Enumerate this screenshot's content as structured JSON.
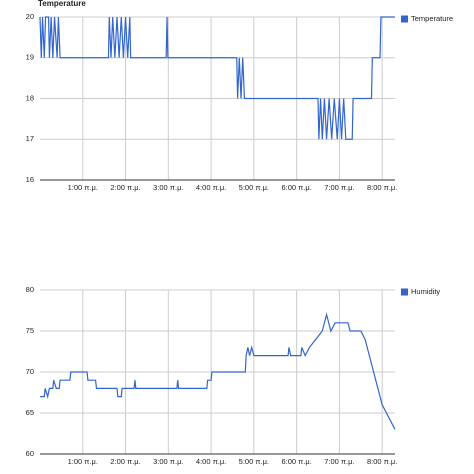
{
  "chart_data": [
    {
      "type": "line",
      "title": "Temperature",
      "x": [
        0,
        0.03,
        0.06,
        0.1,
        0.13,
        0.2,
        0.22,
        0.26,
        0.3,
        0.34,
        0.4,
        0.43,
        0.47,
        1.6,
        1.62,
        1.66,
        1.7,
        1.75,
        1.8,
        1.85,
        1.9,
        1.95,
        2.0,
        2.05,
        2.1,
        2.12,
        2.95,
        2.97,
        2.99,
        4.6,
        4.62,
        4.66,
        4.7,
        4.74,
        4.78,
        6.5,
        6.52,
        6.56,
        6.6,
        6.65,
        6.7,
        6.76,
        6.82,
        6.88,
        6.95,
        7.0,
        7.05,
        7.1,
        7.15,
        7.3,
        7.32,
        7.75,
        7.77,
        7.95,
        7.97,
        8.3
      ],
      "series": [
        {
          "name": "Temperature",
          "color": "#3366cc",
          "values": [
            20,
            19,
            20,
            19,
            20,
            20,
            19,
            20,
            19,
            20,
            19,
            20,
            19,
            19,
            20,
            19,
            20,
            19,
            20,
            19,
            20,
            19,
            20,
            19,
            20,
            19,
            19,
            20,
            19,
            19,
            18,
            19,
            18,
            19,
            18,
            18,
            17,
            18,
            17,
            18,
            17,
            18,
            17,
            18,
            17,
            18,
            17,
            18,
            17,
            17,
            18,
            18,
            19,
            19,
            20,
            20
          ]
        }
      ],
      "xlim": [
        0,
        8.3
      ],
      "xticks": [
        {
          "value": 1,
          "label": "1:00 π.μ."
        },
        {
          "value": 2,
          "label": "2:00 π.μ."
        },
        {
          "value": 3,
          "label": "3:00 π.μ."
        },
        {
          "value": 4,
          "label": "4:00 π.μ."
        },
        {
          "value": 5,
          "label": "5:00 π.μ."
        },
        {
          "value": 6,
          "label": "6:00 π.μ."
        },
        {
          "value": 7,
          "label": "7:00 π.μ."
        },
        {
          "value": 8,
          "label": "8:00 π.μ."
        }
      ],
      "ylim": [
        16,
        20
      ],
      "yticks": [
        16,
        17,
        18,
        19,
        20
      ],
      "grid": true,
      "legend": "right"
    },
    {
      "type": "line",
      "x": [
        0,
        0.1,
        0.12,
        0.18,
        0.22,
        0.3,
        0.32,
        0.38,
        0.45,
        0.47,
        0.7,
        0.72,
        1.1,
        1.12,
        1.3,
        1.32,
        1.8,
        1.82,
        1.9,
        1.92,
        2.2,
        2.22,
        2.24,
        3.2,
        3.22,
        3.24,
        3.9,
        3.92,
        4.0,
        4.02,
        4.8,
        4.82,
        4.86,
        4.9,
        4.95,
        5.0,
        5.8,
        5.82,
        5.86,
        6.1,
        6.12,
        6.2,
        6.3,
        6.45,
        6.6,
        6.7,
        6.8,
        6.9,
        7.2,
        7.25,
        7.5,
        7.6,
        7.7,
        7.8,
        7.9,
        8.0,
        8.1,
        8.2,
        8.3
      ],
      "series": [
        {
          "name": "Humidity",
          "color": "#3366cc",
          "values": [
            67,
            67,
            68,
            67,
            68,
            68,
            69,
            68,
            68,
            69,
            69,
            70,
            70,
            69,
            69,
            68,
            68,
            67,
            67,
            68,
            68,
            69,
            68,
            68,
            69,
            68,
            68,
            69,
            69,
            70,
            70,
            72,
            73,
            72,
            73,
            72,
            72,
            73,
            72,
            72,
            73,
            72,
            73,
            74,
            75,
            77,
            75,
            76,
            76,
            75,
            75,
            74,
            72,
            70,
            68,
            66,
            65,
            64,
            63
          ]
        }
      ],
      "xlim": [
        0,
        8.3
      ],
      "xticks": [
        {
          "value": 1,
          "label": "1:00 π.μ."
        },
        {
          "value": 2,
          "label": "2:00 π.μ."
        },
        {
          "value": 3,
          "label": "3:00 π.μ."
        },
        {
          "value": 4,
          "label": "4:00 π.μ."
        },
        {
          "value": 5,
          "label": "5:00 π.μ."
        },
        {
          "value": 6,
          "label": "6:00 π.μ."
        },
        {
          "value": 7,
          "label": "7:00 π.μ."
        },
        {
          "value": 8,
          "label": "8:00 π.μ."
        }
      ],
      "ylim": [
        60,
        80
      ],
      "yticks": [
        60,
        65,
        70,
        75,
        80
      ],
      "grid": true,
      "legend": "right"
    }
  ]
}
